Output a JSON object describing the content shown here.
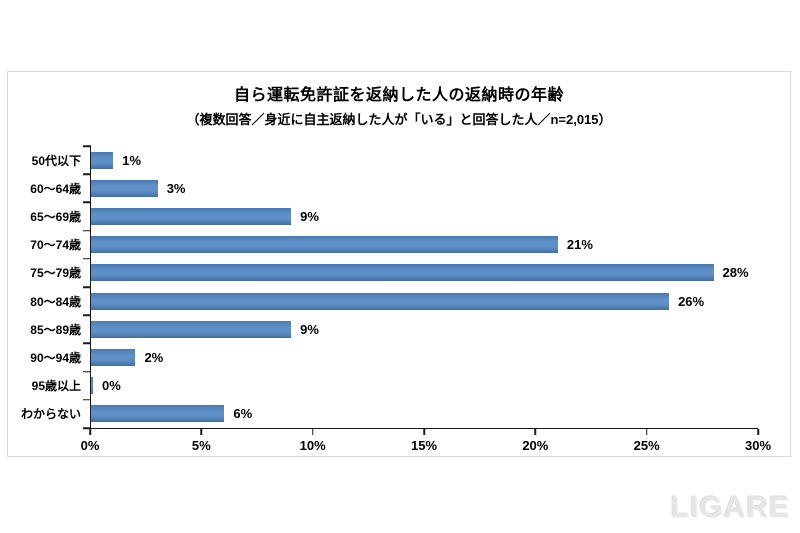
{
  "chart_data": {
    "type": "bar",
    "orientation": "horizontal",
    "title": "自ら運転免許証を返納した人の返納時の年齢",
    "subtitle": "（複数回答／身近に自主返納した人が「いる」と回答した人／n=2,015）",
    "categories": [
      "50代以下",
      "60～64歳",
      "65～69歳",
      "70～74歳",
      "75～79歳",
      "80～84歳",
      "85～89歳",
      "90～94歳",
      "95歳以上",
      "わからない"
    ],
    "values": [
      1,
      3,
      9,
      21,
      28,
      26,
      9,
      2,
      0,
      6
    ],
    "value_labels": [
      "1%",
      "3%",
      "9%",
      "21%",
      "28%",
      "26%",
      "9%",
      "2%",
      "0%",
      "6%"
    ],
    "x_tick_labels": [
      "0%",
      "5%",
      "10%",
      "15%",
      "20%",
      "25%",
      "30%"
    ],
    "xlim": [
      0,
      30
    ],
    "unit": "%",
    "xlabel": "",
    "ylabel": "",
    "grid": false,
    "legend": false,
    "bar_color": "#4f81bd",
    "axis_color": "#1a1a1a",
    "frame_color": "#d6d6d6"
  },
  "watermark": {
    "text": "LIGARE"
  }
}
